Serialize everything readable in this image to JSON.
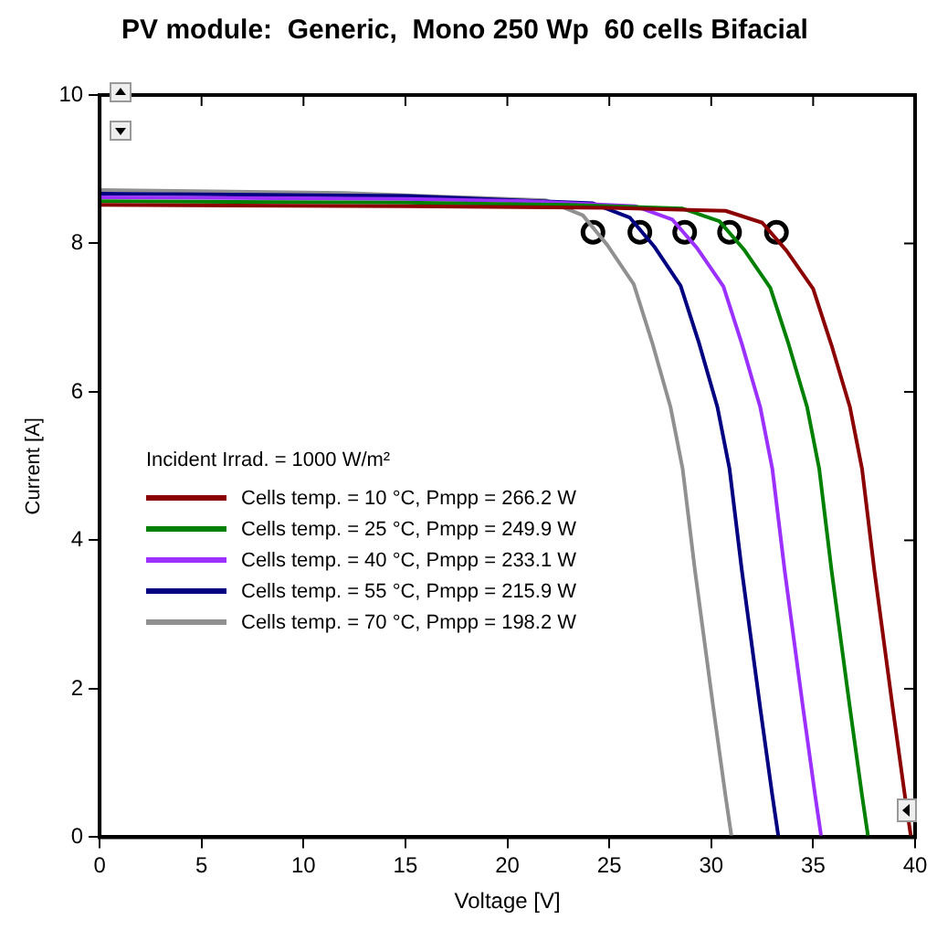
{
  "chart_data": {
    "type": "line",
    "title": "PV module:  Generic,  Mono 250 Wp  60 cells Bifacial",
    "xlabel": "Voltage [V]",
    "ylabel": "Current [A]",
    "legend_title": "Incident Irrad. = 1000 W/m²",
    "legend": "left",
    "grid": false,
    "marker": "none",
    "line_style": "solid",
    "xlim": [
      0,
      40
    ],
    "xticks": [
      0,
      5,
      10,
      15,
      20,
      25,
      30,
      35,
      40
    ],
    "ylim": [
      0,
      10
    ],
    "yticks": [
      0,
      2,
      4,
      6,
      8,
      10
    ],
    "series": [
      {
        "name": "Cells temp. = 10 °C,  Pmpp = 266.2 W",
        "color": "#8b0000",
        "x": [
          0,
          15,
          25,
          30.7,
          32.5,
          33.7,
          35.0,
          35.9,
          36.8,
          37.4,
          38.0,
          38.9,
          39.5,
          39.8
        ],
        "values": [
          8.52,
          8.5,
          8.48,
          8.44,
          8.28,
          7.9,
          7.39,
          6.63,
          5.8,
          4.96,
          3.6,
          1.75,
          0.56,
          0
        ]
      },
      {
        "name": "Cells temp. = 25 °C,  Pmpp = 249.9 W",
        "color": "#008000",
        "x": [
          0,
          15,
          23,
          28.6,
          30.4,
          31.6,
          32.9,
          33.8,
          34.7,
          35.3,
          35.9,
          36.8,
          37.4,
          37.7
        ],
        "values": [
          8.57,
          8.55,
          8.52,
          8.47,
          8.3,
          7.92,
          7.4,
          6.64,
          5.8,
          4.96,
          3.6,
          1.75,
          0.56,
          0
        ]
      },
      {
        "name": "Cells temp. = 40 °C,  Pmpp = 233.1 W",
        "color": "#9b30ff",
        "x": [
          0,
          15,
          21,
          26.3,
          28.1,
          29.3,
          30.6,
          31.5,
          32.4,
          33,
          33.6,
          34.5,
          35.1,
          35.4
        ],
        "values": [
          8.62,
          8.6,
          8.57,
          8.5,
          8.32,
          7.94,
          7.42,
          6.65,
          5.8,
          4.96,
          3.6,
          1.75,
          0.56,
          0
        ]
      },
      {
        "name": "Cells temp. = 55 °C,  Pmpp = 215.9 W",
        "color": "#000080",
        "x": [
          0,
          15,
          24.2,
          26,
          27.2,
          28.5,
          29.4,
          30.3,
          30.9,
          31.5,
          32.4,
          33,
          33.3
        ],
        "values": [
          8.67,
          8.64,
          8.54,
          8.35,
          7.96,
          7.43,
          6.66,
          5.8,
          4.96,
          3.6,
          1.75,
          0.56,
          0
        ]
      },
      {
        "name": "Cells temp. = 70 °C,  Pmpp = 198.2 W",
        "color": "#909090",
        "x": [
          0,
          12,
          21.9,
          23.7,
          24.9,
          26.2,
          27.1,
          28,
          28.6,
          29.2,
          30.1,
          30.7,
          31
        ],
        "values": [
          8.72,
          8.68,
          8.58,
          8.38,
          7.98,
          7.45,
          6.67,
          5.8,
          4.96,
          3.6,
          1.75,
          0.56,
          0
        ]
      },
      {
        "type": "scatter",
        "marker": "circle",
        "color": "#000000",
        "x": [
          24.2,
          26.5,
          28.7,
          30.9,
          33.2
        ],
        "values": [
          8.15,
          8.15,
          8.15,
          8.15,
          8.15
        ]
      }
    ]
  }
}
